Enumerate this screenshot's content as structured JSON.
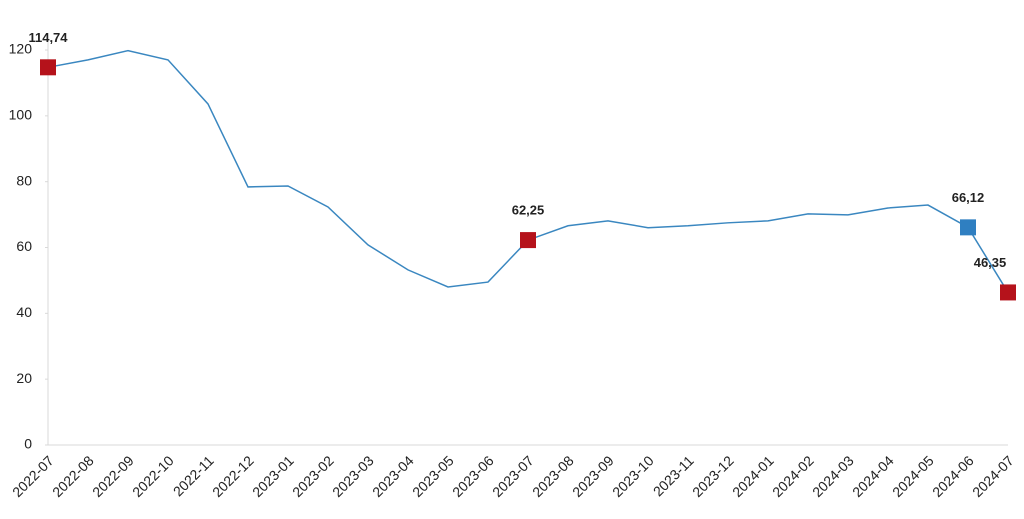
{
  "chart_data": {
    "type": "line",
    "categories": [
      "2022-07",
      "2022-08",
      "2022-09",
      "2022-10",
      "2022-11",
      "2022-12",
      "2023-01",
      "2023-02",
      "2023-03",
      "2023-04",
      "2023-05",
      "2023-06",
      "2023-07",
      "2023-08",
      "2023-09",
      "2023-10",
      "2023-11",
      "2023-12",
      "2024-01",
      "2024-02",
      "2024-03",
      "2024-04",
      "2024-05",
      "2024-06",
      "2024-07"
    ],
    "series": [
      {
        "color": "#3a87c0",
        "values": [
          114.74,
          117,
          119.8,
          117,
          103.6,
          78.4,
          78.7,
          72.3,
          60.8,
          53.2,
          48,
          49.5,
          62.25,
          66.6,
          68.1,
          66,
          66.6,
          67.5,
          68.1,
          70.2,
          69.9,
          72,
          72.9,
          66.12,
          46.35
        ],
        "value_labels": [
          "114,74",
          null,
          null,
          null,
          null,
          null,
          null,
          null,
          null,
          null,
          null,
          null,
          "62,25",
          null,
          null,
          null,
          null,
          null,
          null,
          null,
          null,
          null,
          null,
          "66,12",
          "46,35"
        ],
        "marker_colors": [
          "#b5121b",
          null,
          null,
          null,
          null,
          null,
          null,
          null,
          null,
          null,
          null,
          null,
          "#b5121b",
          null,
          null,
          null,
          null,
          null,
          null,
          null,
          null,
          null,
          null,
          "#2f7fc1",
          "#b5121b"
        ]
      }
    ],
    "ylim": [
      0,
      120
    ],
    "yticks": [
      0,
      20,
      40,
      60,
      80,
      100,
      120
    ]
  }
}
